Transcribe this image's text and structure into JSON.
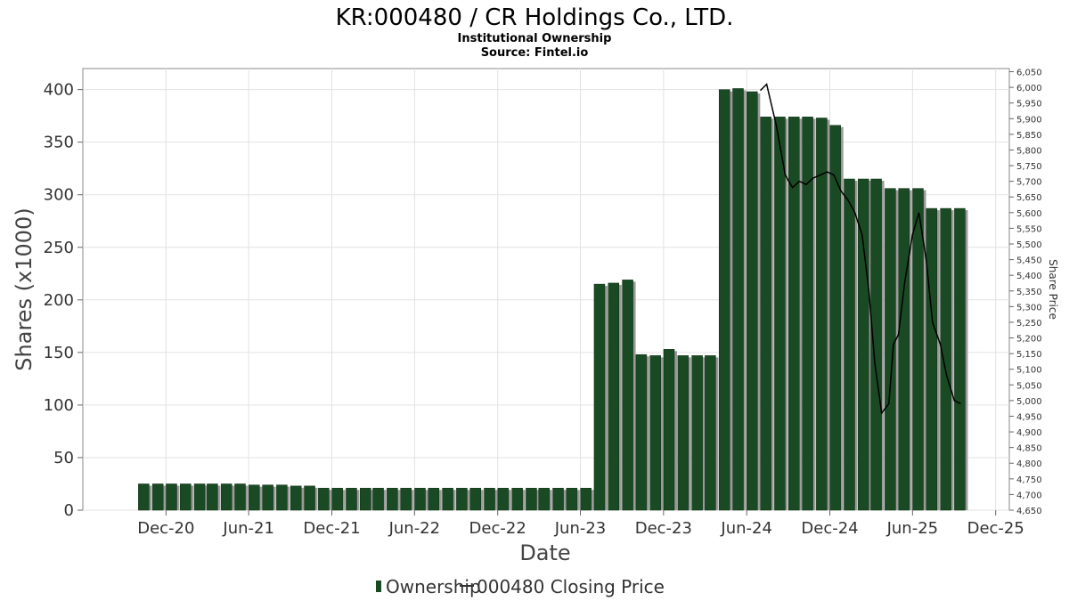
{
  "title": "KR:000480 / CR Holdings Co., LTD.",
  "subtitle": "Institutional Ownership",
  "source": "Source: Fintel.io",
  "chart_data": {
    "type": "bar",
    "title": "KR:000480 / CR Holdings Co., LTD.",
    "xlabel": "Date",
    "ylabel": "Shares (x1000)",
    "y2label": "Share Price",
    "ylim": [
      0,
      420
    ],
    "y2lim": [
      4650,
      6060
    ],
    "grid": true,
    "legend_position": "bottom",
    "x_ticks": [
      "Dec-20",
      "Jun-21",
      "Dec-21",
      "Jun-22",
      "Dec-22",
      "Jun-23",
      "Dec-23",
      "Jun-24",
      "Dec-24",
      "Jun-25",
      "Dec-25"
    ],
    "y_ticks": [
      "0",
      "50",
      "100",
      "150",
      "200",
      "250",
      "300",
      "350",
      "400"
    ],
    "y2_ticks": [
      "4,650",
      "4,700",
      "4,750",
      "4,800",
      "4,850",
      "4,900",
      "4,950",
      "5,000",
      "5,050",
      "5,100",
      "5,150",
      "5,200",
      "5,250",
      "5,300",
      "5,350",
      "5,400",
      "5,450",
      "5,500",
      "5,550",
      "5,600",
      "5,650",
      "5,700",
      "5,750",
      "5,800",
      "5,850",
      "5,900",
      "5,950",
      "6,000",
      "6,050"
    ],
    "series": [
      {
        "name": "Ownership",
        "kind": "bar",
        "color": "#1a4a23",
        "x": [
          "2020-10-15",
          "2020-11-15",
          "2020-12-15",
          "2021-01-15",
          "2021-02-15",
          "2021-03-15",
          "2021-04-15",
          "2021-05-15",
          "2021-06-15",
          "2021-07-15",
          "2021-08-15",
          "2021-09-15",
          "2021-10-15",
          "2021-11-15",
          "2021-12-15",
          "2022-01-15",
          "2022-02-15",
          "2022-03-15",
          "2022-04-15",
          "2022-05-15",
          "2022-06-15",
          "2022-07-15",
          "2022-08-15",
          "2022-09-15",
          "2022-10-15",
          "2022-11-15",
          "2022-12-15",
          "2023-01-15",
          "2023-02-15",
          "2023-03-15",
          "2023-04-15",
          "2023-05-15",
          "2023-06-15",
          "2023-07-15",
          "2023-08-15",
          "2023-09-15",
          "2023-10-15",
          "2023-11-15",
          "2023-12-15",
          "2024-01-15",
          "2024-02-15",
          "2024-03-15",
          "2024-04-15",
          "2024-05-15",
          "2024-06-15",
          "2024-07-15",
          "2024-08-15",
          "2024-09-15",
          "2024-10-15",
          "2024-11-15",
          "2024-12-15",
          "2025-01-15",
          "2025-02-15",
          "2025-03-15",
          "2025-04-15",
          "2025-05-15",
          "2025-06-15",
          "2025-07-15",
          "2025-08-15",
          "2025-09-15"
        ],
        "values": [
          25,
          25,
          25,
          25,
          25,
          25,
          25,
          25,
          24,
          24,
          24,
          23,
          23,
          21,
          21,
          21,
          21,
          21,
          21,
          21,
          21,
          21,
          21,
          21,
          21,
          21,
          21,
          21,
          21,
          21,
          21,
          21,
          21,
          215,
          216,
          219,
          148,
          147,
          153,
          147,
          147,
          147,
          400,
          401,
          398,
          374,
          374,
          374,
          374,
          373,
          366,
          315,
          315,
          315,
          306,
          306,
          306,
          287,
          287,
          287
        ]
      },
      {
        "name": "000480 Closing Price",
        "kind": "line",
        "color": "#000000",
        "x": [
          "2024-07-01",
          "2024-07-15",
          "2024-08-05",
          "2024-08-25",
          "2024-09-10",
          "2024-09-25",
          "2024-10-10",
          "2024-10-25",
          "2024-11-10",
          "2024-11-25",
          "2024-12-10",
          "2024-12-25",
          "2025-01-10",
          "2025-01-25",
          "2025-02-10",
          "2025-02-25",
          "2025-03-10",
          "2025-03-25",
          "2025-04-10",
          "2025-04-20",
          "2025-05-01",
          "2025-05-15",
          "2025-06-01",
          "2025-06-15",
          "2025-07-01",
          "2025-07-15",
          "2025-08-01",
          "2025-08-15",
          "2025-09-01",
          "2025-09-15"
        ],
        "values": [
          5990,
          6010,
          5880,
          5720,
          5680,
          5700,
          5690,
          5710,
          5720,
          5730,
          5720,
          5670,
          5640,
          5600,
          5530,
          5350,
          5120,
          4960,
          4990,
          5180,
          5210,
          5380,
          5530,
          5600,
          5450,
          5250,
          5180,
          5080,
          5000,
          4990
        ]
      }
    ]
  },
  "legend": {
    "ownership_label": "Ownership",
    "price_label": "000480 Closing Price"
  }
}
